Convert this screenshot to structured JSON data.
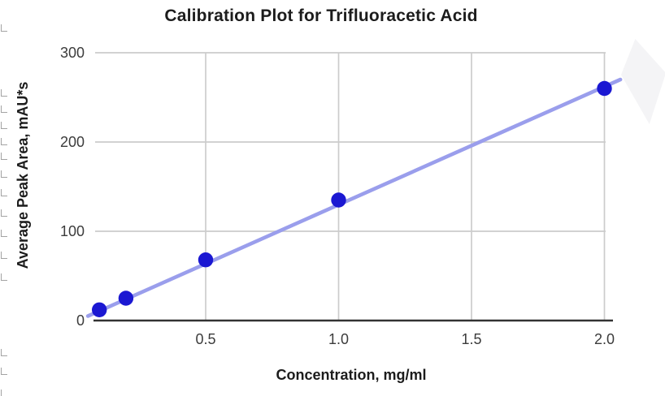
{
  "chart_data": {
    "type": "scatter",
    "title": "Calibration Plot for Trifluoracetic Acid",
    "xlabel": "Concentration, mg/ml",
    "ylabel": "Average Peak Area, mAU*s",
    "x": [
      0.1,
      0.2,
      0.5,
      1.0,
      2.0
    ],
    "y": [
      12,
      25,
      68,
      135,
      260
    ],
    "xticks": {
      "values": [
        0.5,
        1.0,
        1.5,
        2.0
      ],
      "labels": [
        "0.5",
        "1.0",
        "1.5",
        "2.0"
      ]
    },
    "yticks": {
      "values": [
        0,
        100,
        200,
        300
      ],
      "labels": [
        "0",
        "100",
        "200",
        "300"
      ]
    },
    "xlim": [
      0.08,
      2.04
    ],
    "ylim": [
      0,
      300
    ],
    "grid": true,
    "legend": "none",
    "trendline": {
      "type": "linear",
      "points": [
        [
          0.057,
          5
        ],
        [
          2.06,
          270
        ]
      ]
    },
    "colors": {
      "point": "#1b18d2",
      "trendline": "#9a9eec",
      "gridline": "#cccccc",
      "axis_line": "#333333",
      "text": "#3c3c3c",
      "title_text": "#1c1c1c"
    }
  }
}
